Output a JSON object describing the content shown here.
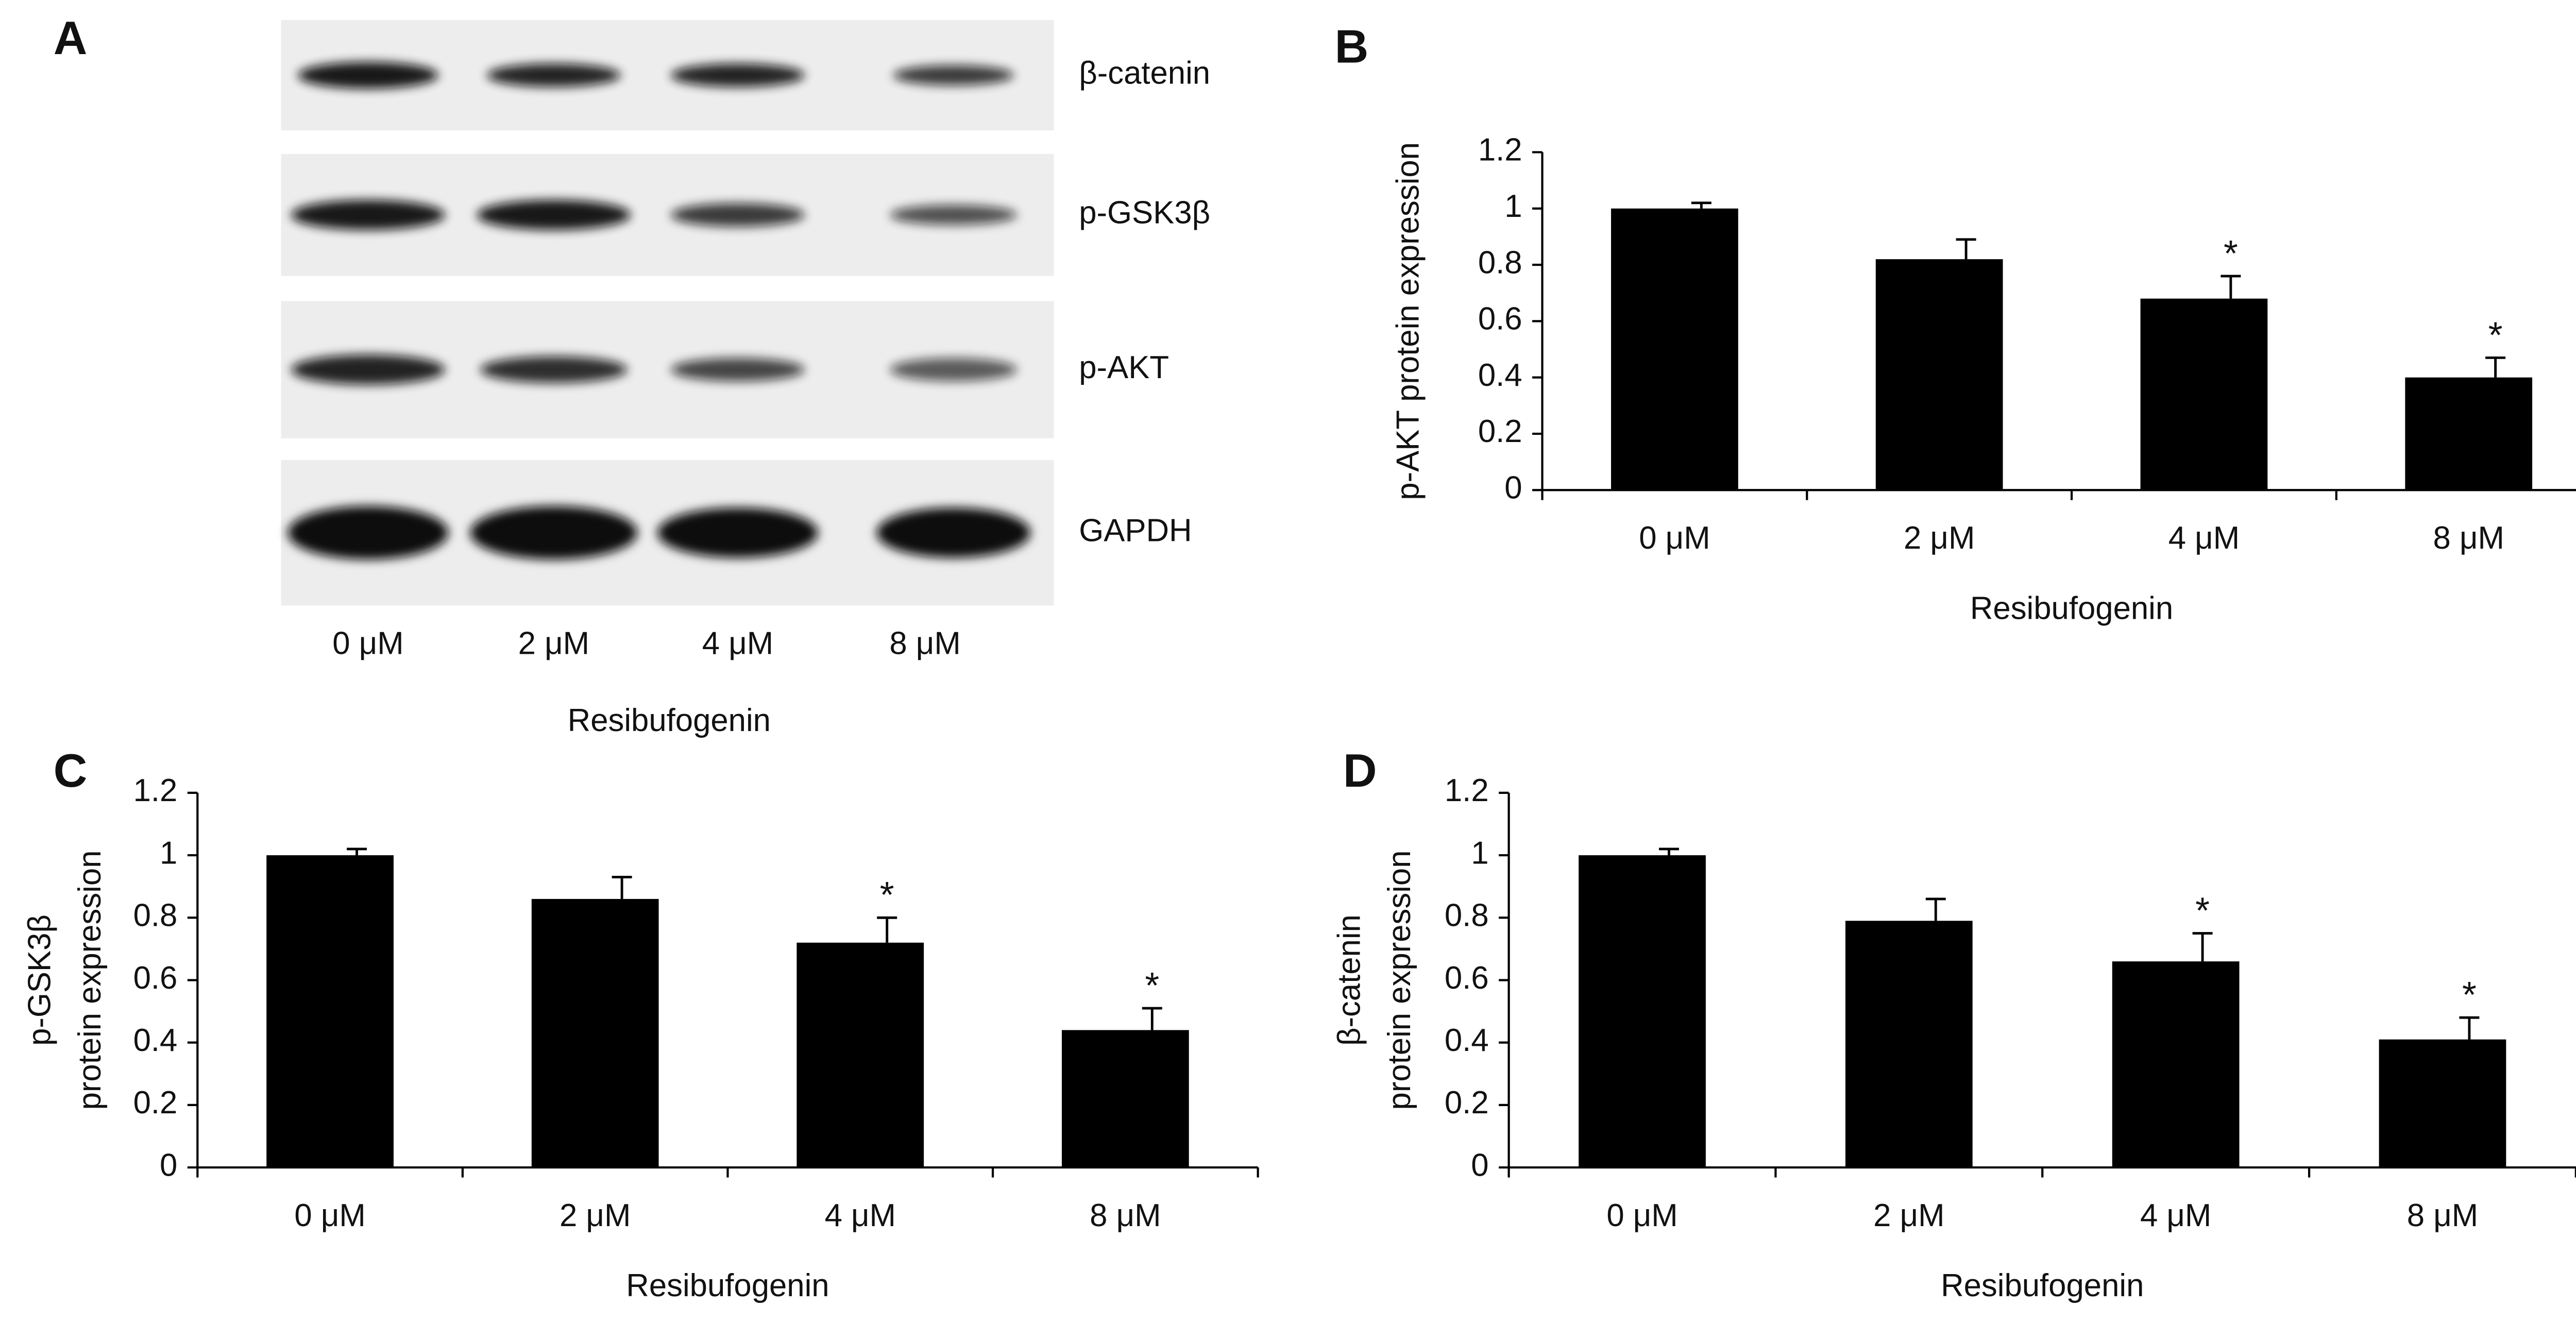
{
  "blot": {
    "panel_label": "A",
    "rows": [
      "β-catenin",
      "p-GSK3β",
      "p-AKT",
      "GAPDH"
    ],
    "lanes": [
      "0 μM",
      "2 μM",
      "4 μM",
      "8 μM"
    ],
    "xlabel": "Resibufogenin"
  },
  "chart_data": [
    {
      "type": "bar",
      "panel_label": "B",
      "ylabel": [
        "p-AKT protein expression"
      ],
      "xlabel": "Resibufogenin",
      "categories": [
        "0 μM",
        "2 μM",
        "4 μM",
        "8 μM"
      ],
      "values": [
        1.0,
        0.82,
        0.68,
        0.4
      ],
      "errors": [
        0.02,
        0.07,
        0.08,
        0.07
      ],
      "significance": [
        null,
        null,
        "*",
        "*"
      ],
      "color": "#000000",
      "ylim": [
        0,
        1.2
      ],
      "yticks": [
        0,
        0.2,
        0.4,
        0.6,
        0.8,
        1,
        1.2
      ]
    },
    {
      "type": "bar",
      "panel_label": "C",
      "ylabel": [
        "p-GSK3β",
        "protein expression"
      ],
      "xlabel": "Resibufogenin",
      "categories": [
        "0 μM",
        "2 μM",
        "4 μM",
        "8 μM"
      ],
      "values": [
        1.0,
        0.86,
        0.72,
        0.44
      ],
      "errors": [
        0.02,
        0.07,
        0.08,
        0.07
      ],
      "significance": [
        null,
        null,
        "*",
        "*"
      ],
      "color": "#000000",
      "ylim": [
        0,
        1.2
      ],
      "yticks": [
        0,
        0.2,
        0.4,
        0.6,
        0.8,
        1,
        1.2
      ]
    },
    {
      "type": "bar",
      "panel_label": "D",
      "ylabel": [
        "β-catenin",
        "protein expression"
      ],
      "xlabel": "Resibufogenin",
      "categories": [
        "0 μM",
        "2 μM",
        "4 μM",
        "8 μM"
      ],
      "values": [
        1.0,
        0.79,
        0.66,
        0.41
      ],
      "errors": [
        0.02,
        0.07,
        0.09,
        0.07
      ],
      "significance": [
        null,
        null,
        "*",
        "*"
      ],
      "color": "#000000",
      "ylim": [
        0,
        1.2
      ],
      "yticks": [
        0,
        0.2,
        0.4,
        0.6,
        0.8,
        1,
        1.2
      ]
    }
  ]
}
